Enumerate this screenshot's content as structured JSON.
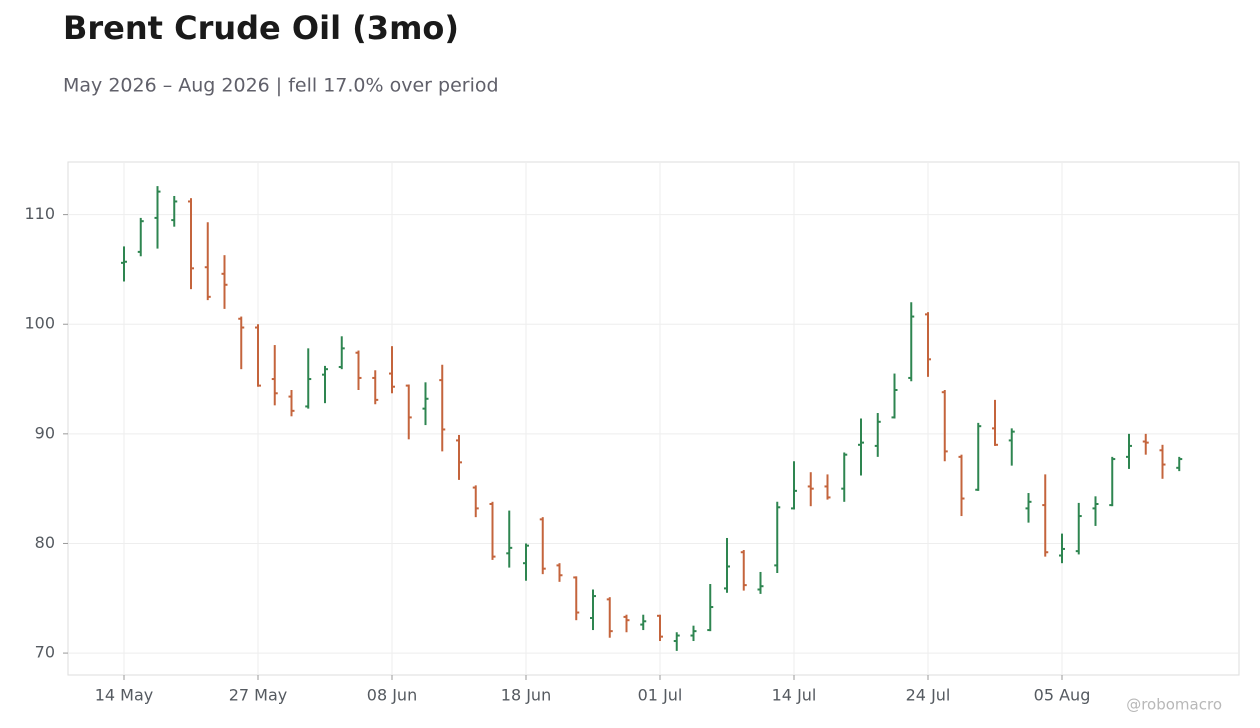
{
  "chart_data": {
    "type": "ohlc",
    "title": "Brent Crude Oil (3mo)",
    "subtitle": "May 2026 – Aug 2026 | fell 17.0% over period",
    "watermark": "@robomacro",
    "categories": [
      "14 May",
      null,
      null,
      null,
      null,
      null,
      null,
      null,
      "27 May",
      null,
      null,
      null,
      null,
      null,
      null,
      null,
      "08 Jun",
      null,
      null,
      null,
      null,
      null,
      null,
      null,
      "18 Jun",
      null,
      null,
      null,
      null,
      null,
      null,
      null,
      "01 Jul",
      null,
      null,
      null,
      null,
      null,
      null,
      null,
      "14 Jul",
      null,
      null,
      null,
      null,
      null,
      null,
      null,
      "24 Jul",
      null,
      null,
      null,
      null,
      null,
      null,
      null,
      "05 Aug",
      null,
      null,
      null,
      null,
      null,
      null,
      null
    ],
    "open": [
      105.6,
      106.6,
      109.7,
      109.5,
      111.2,
      105.2,
      104.6,
      100.5,
      99.7,
      95.0,
      93.4,
      92.5,
      95.4,
      96.1,
      97.4,
      95.1,
      95.5,
      94.4,
      92.3,
      94.9,
      89.4,
      85.1,
      83.6,
      79.1,
      78.2,
      82.2,
      78.0,
      76.9,
      73.2,
      74.9,
      73.3,
      72.6,
      73.4,
      71.1,
      71.6,
      72.1,
      75.9,
      79.2,
      75.8,
      78.0,
      83.2,
      85.2,
      85.2,
      85.0,
      89.0,
      88.9,
      91.5,
      95.1,
      100.9,
      93.8,
      87.9,
      84.9,
      90.5,
      89.4,
      83.2,
      83.5,
      78.9,
      79.3,
      83.2,
      83.5,
      87.9,
      89.3,
      88.5,
      86.9
    ],
    "high": [
      107.1,
      109.7,
      112.6,
      111.7,
      111.5,
      109.3,
      106.3,
      100.7,
      100.0,
      98.1,
      94.0,
      97.8,
      96.2,
      98.9,
      97.6,
      95.8,
      98.0,
      94.5,
      94.7,
      96.3,
      89.9,
      85.3,
      83.8,
      83.0,
      80.0,
      82.4,
      78.2,
      77.0,
      75.8,
      75.1,
      73.5,
      73.5,
      73.5,
      71.9,
      72.5,
      76.3,
      80.5,
      79.4,
      77.4,
      83.8,
      87.5,
      86.5,
      86.3,
      88.3,
      91.4,
      91.9,
      95.5,
      102.0,
      101.1,
      94.0,
      88.1,
      91.0,
      93.1,
      90.5,
      84.6,
      86.3,
      80.9,
      83.7,
      84.3,
      87.9,
      90.0,
      90.0,
      89.0,
      87.9
    ],
    "low": [
      103.9,
      106.2,
      106.9,
      108.9,
      103.2,
      102.2,
      101.4,
      95.9,
      94.3,
      92.6,
      91.6,
      92.3,
      92.8,
      95.9,
      94.0,
      92.7,
      93.7,
      89.5,
      90.8,
      88.4,
      85.8,
      82.4,
      78.5,
      77.8,
      76.6,
      77.2,
      76.5,
      73.0,
      72.1,
      71.4,
      71.9,
      72.1,
      71.1,
      70.2,
      71.1,
      72.0,
      75.5,
      75.7,
      75.4,
      77.3,
      83.1,
      83.4,
      84.0,
      83.8,
      86.2,
      87.9,
      91.4,
      94.8,
      95.2,
      87.5,
      82.5,
      84.8,
      88.9,
      87.1,
      81.9,
      78.8,
      78.2,
      79.0,
      81.6,
      83.4,
      86.8,
      88.1,
      85.9,
      86.6
    ],
    "close": [
      105.7,
      109.4,
      112.1,
      111.2,
      105.1,
      102.5,
      103.6,
      99.7,
      94.4,
      93.7,
      92.1,
      95.0,
      95.9,
      97.8,
      95.1,
      93.1,
      94.3,
      91.5,
      93.2,
      90.4,
      87.4,
      83.2,
      78.8,
      79.6,
      79.8,
      77.7,
      77.1,
      73.7,
      75.2,
      72.0,
      73.0,
      72.9,
      71.5,
      71.6,
      72.0,
      74.2,
      77.9,
      76.2,
      76.1,
      83.3,
      84.8,
      85.0,
      84.2,
      88.1,
      89.2,
      91.1,
      94.0,
      100.7,
      96.8,
      88.4,
      84.1,
      90.7,
      89.0,
      90.2,
      83.8,
      79.2,
      79.5,
      82.5,
      83.6,
      87.7,
      88.9,
      89.2,
      87.2,
      87.7
    ],
    "up_color": "#2e8550",
    "down_color": "#c4643c",
    "ylim": [
      68.0,
      114.8
    ],
    "yticks": [
      70,
      80,
      90,
      100,
      110
    ],
    "grid": true
  }
}
